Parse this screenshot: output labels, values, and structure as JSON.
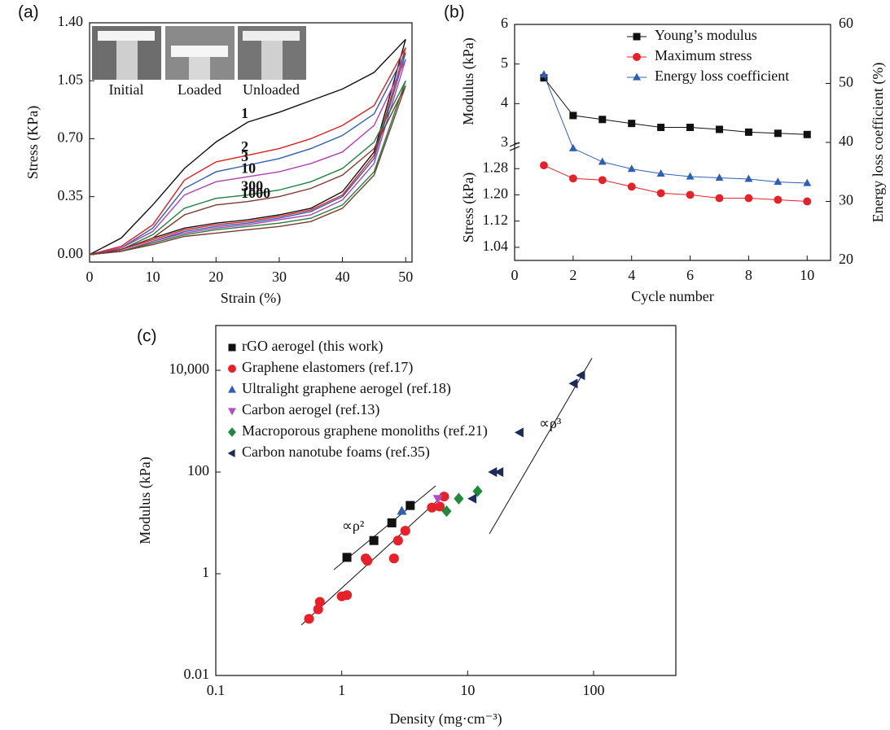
{
  "chart_data": [
    {
      "type": "line",
      "label": "(a)",
      "xlabel": "Strain (%)",
      "ylabel": "Stress (KPa)",
      "inset_labels": [
        "Initial",
        "Loaded",
        "Unloaded"
      ],
      "x": [
        0,
        5,
        10,
        15,
        20,
        25,
        30,
        35,
        40,
        45,
        50,
        45,
        40,
        35,
        30,
        25,
        20,
        15,
        10,
        5,
        0
      ],
      "xlim": [
        0,
        51
      ],
      "xticks": [
        0,
        10,
        20,
        30,
        40,
        50
      ],
      "ylim": [
        -0.045,
        1.4
      ],
      "yticks": [
        {
          "value": 0,
          "label": "0.00"
        },
        0.35,
        {
          "value": 0.7,
          "label": "0.70"
        },
        1.05,
        {
          "value": 1.4,
          "label": "1.40"
        }
      ],
      "series": [
        {
          "name": "1",
          "color": "#111111",
          "values": [
            0,
            0.1,
            0.3,
            0.52,
            0.68,
            0.8,
            0.86,
            0.93,
            1.0,
            1.1,
            1.3,
            0.62,
            0.38,
            0.28,
            0.24,
            0.21,
            0.19,
            0.16,
            0.1,
            0.03,
            0
          ]
        },
        {
          "name": "2",
          "color": "#e02020",
          "values": [
            0,
            0.05,
            0.18,
            0.45,
            0.56,
            0.6,
            0.64,
            0.7,
            0.78,
            0.9,
            1.25,
            0.6,
            0.36,
            0.27,
            0.23,
            0.2,
            0.18,
            0.15,
            0.09,
            0.03,
            0
          ]
        },
        {
          "name": "3",
          "color": "#2a5db0",
          "values": [
            0,
            0.04,
            0.16,
            0.4,
            0.5,
            0.54,
            0.58,
            0.64,
            0.72,
            0.85,
            1.22,
            0.58,
            0.35,
            0.26,
            0.22,
            0.19,
            0.17,
            0.14,
            0.08,
            0.02,
            0
          ]
        },
        {
          "name": "10",
          "color": "#b040b0",
          "values": [
            0,
            0.04,
            0.14,
            0.36,
            0.44,
            0.47,
            0.5,
            0.55,
            0.62,
            0.78,
            1.18,
            0.55,
            0.33,
            0.24,
            0.21,
            0.18,
            0.16,
            0.13,
            0.08,
            0.02,
            0
          ]
        },
        {
          "name": "300",
          "color": "#208040",
          "values": [
            0,
            0.03,
            0.12,
            0.28,
            0.34,
            0.36,
            0.39,
            0.44,
            0.52,
            0.68,
            1.05,
            0.5,
            0.3,
            0.22,
            0.19,
            0.17,
            0.15,
            0.12,
            0.07,
            0.02,
            0
          ]
        },
        {
          "name": "1000",
          "color": "#7a3b2e",
          "values": [
            0,
            0.03,
            0.1,
            0.24,
            0.3,
            0.32,
            0.35,
            0.4,
            0.48,
            0.64,
            1.02,
            0.48,
            0.28,
            0.2,
            0.17,
            0.15,
            0.13,
            0.11,
            0.06,
            0.02,
            0
          ]
        }
      ]
    },
    {
      "type": "line",
      "label": "(b)",
      "xlabel": "Cycle number",
      "x": [
        1,
        2,
        3,
        4,
        5,
        6,
        7,
        8,
        9,
        10
      ],
      "xlim": [
        0,
        10.8
      ],
      "xticks": [
        0,
        2,
        4,
        6,
        8,
        10
      ],
      "y_segments": [
        {
          "label": "Modulus (kPa)",
          "lim": [
            3,
            6
          ],
          "ticks": [
            3,
            4,
            5,
            6
          ]
        },
        {
          "label": "Stress (kPa)",
          "lim": [
            1.0,
            1.35
          ],
          "ticks": [
            1.04,
            1.12,
            {
              "value": 1.2,
              "label": "1.20"
            },
            1.28
          ]
        }
      ],
      "y2label": "Energy  loss coefficient (%)",
      "y2lim": [
        20,
        60
      ],
      "y2ticks": [
        20,
        30,
        40,
        50,
        60
      ],
      "legend": "upper right",
      "series": [
        {
          "name": "Young’s modulus",
          "color": "#111111",
          "marker": "square",
          "segment": 0,
          "values": [
            4.65,
            3.7,
            3.6,
            3.5,
            3.4,
            3.4,
            3.35,
            3.28,
            3.25,
            3.22
          ]
        },
        {
          "name": "Maximum stress",
          "color": "#e8202a",
          "marker": "circle",
          "segment": 1,
          "values": [
            1.29,
            1.25,
            1.245,
            1.225,
            1.205,
            1.2,
            1.19,
            1.19,
            1.185,
            1.18
          ]
        },
        {
          "name": "Energy loss coefficient",
          "color": "#2f5fb5",
          "marker": "triangle-up",
          "axis": "y2",
          "values": [
            51.5,
            39,
            36.7,
            35.5,
            34.7,
            34.2,
            34,
            33.8,
            33.3,
            33.1
          ]
        }
      ]
    },
    {
      "type": "scatter",
      "label": "(c)",
      "xlabel": "Density (mg·cm⁻³)",
      "ylabel": "Modulus (kPa)",
      "xscale": "log",
      "yscale": "log",
      "xlim": [
        0.1,
        450
      ],
      "xticks": [
        0.1,
        1,
        10,
        100
      ],
      "ylim": [
        0.01,
        76000
      ],
      "yticks": [
        0.01,
        1,
        100,
        {
          "value": 10000,
          "label": "10,000"
        }
      ],
      "legend": "upper left",
      "annotations": [
        "∝ρ²",
        "∝ρ³"
      ],
      "series": [
        {
          "name": "rGO aerogel (this work)",
          "color": "#111111",
          "marker": "square",
          "x": [
            1.1,
            1.8,
            2.5,
            3.5
          ],
          "values": [
            2.1,
            4.5,
            10,
            22
          ]
        },
        {
          "name": "Graphene elastomers (ref.17)",
          "color": "#e8202a",
          "marker": "circle",
          "x": [
            0.55,
            0.65,
            0.67,
            1.0,
            1.1,
            1.55,
            1.6,
            2.6,
            2.8,
            3.2,
            5.2,
            6.0,
            6.5
          ],
          "values": [
            0.13,
            0.2,
            0.28,
            0.36,
            0.38,
            2.0,
            1.8,
            2.0,
            4.5,
            7,
            20,
            21,
            33
          ]
        },
        {
          "name": "Ultralight graphene aerogel (ref.18)",
          "color": "#2f5fb5",
          "marker": "triangle-up",
          "x": [
            3.0
          ],
          "values": [
            17
          ]
        },
        {
          "name": "Carbon aerogel (ref.13)",
          "color": "#b050c0",
          "marker": "triangle-down",
          "x": [
            5.8
          ],
          "values": [
            30
          ]
        },
        {
          "name": "Macroporous graphene monoliths (ref.21)",
          "color": "#1f8a3a",
          "marker": "diamond",
          "x": [
            6.8,
            8.5,
            12
          ],
          "values": [
            17,
            30,
            42
          ]
        },
        {
          "name": "Carbon nanotube foams (ref.35)",
          "color": "#1c2b5a",
          "marker": "triangle-left",
          "x": [
            11,
            16,
            18,
            26,
            70,
            80
          ],
          "values": [
            30,
            100,
            100,
            600,
            5500,
            8000
          ]
        }
      ]
    }
  ]
}
